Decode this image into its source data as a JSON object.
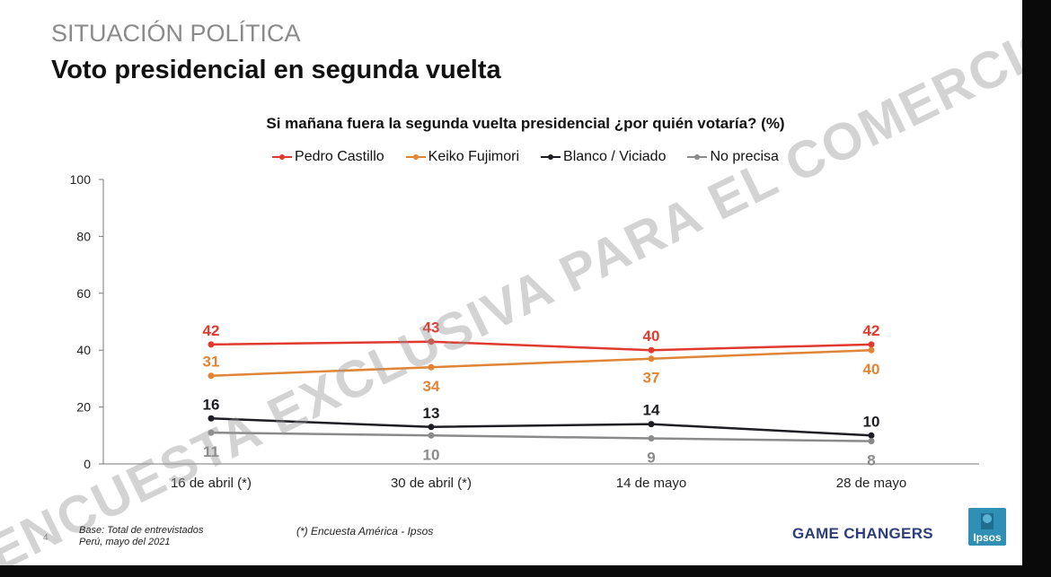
{
  "header": {
    "section": "SITUACIÓN POLÍTICA",
    "title": "Voto presidencial en segunda vuelta"
  },
  "chart_data": {
    "type": "line",
    "title": "Si mañana fuera la segunda vuelta presidencial ¿por quién votaría? (%)",
    "categories": [
      "16 de abril (*)",
      "30 de abril (*)",
      "14 de mayo",
      "28 de mayo"
    ],
    "ylim": [
      0,
      100
    ],
    "yticks": [
      0,
      20,
      40,
      60,
      80,
      100
    ],
    "grid": false,
    "legend": "top",
    "series": [
      {
        "name": "Pedro Castillo",
        "color": "#e03a2f",
        "values": [
          42,
          43,
          40,
          42
        ],
        "label_pos": [
          "above",
          "above",
          "above",
          "above"
        ]
      },
      {
        "name": "Keiko Fujimori",
        "color": "#e08535",
        "values": [
          31,
          34,
          37,
          40
        ],
        "label_pos": [
          "above",
          "below",
          "below",
          "below"
        ]
      },
      {
        "name": "Blanco / Viciado",
        "color": "#1d1d24",
        "values": [
          16,
          13,
          14,
          10
        ],
        "label_pos": [
          "above",
          "above",
          "above",
          "above"
        ]
      },
      {
        "name": "No precisa",
        "color": "#8a8a8a",
        "values": [
          11,
          10,
          9,
          8
        ],
        "label_pos": [
          "below",
          "below",
          "below",
          "below"
        ]
      }
    ]
  },
  "watermark": "ENCUESTA EXCLUSIVA PARA EL COMERCIO",
  "footer": {
    "base_line1": "Base: Total de entrevistados",
    "base_line2": "Perú, mayo del 2021",
    "source": "(*) Encuesta América - Ipsos",
    "page_number": "4",
    "brand": "GAME CHANGERS",
    "logo_text": "Ipsos"
  }
}
